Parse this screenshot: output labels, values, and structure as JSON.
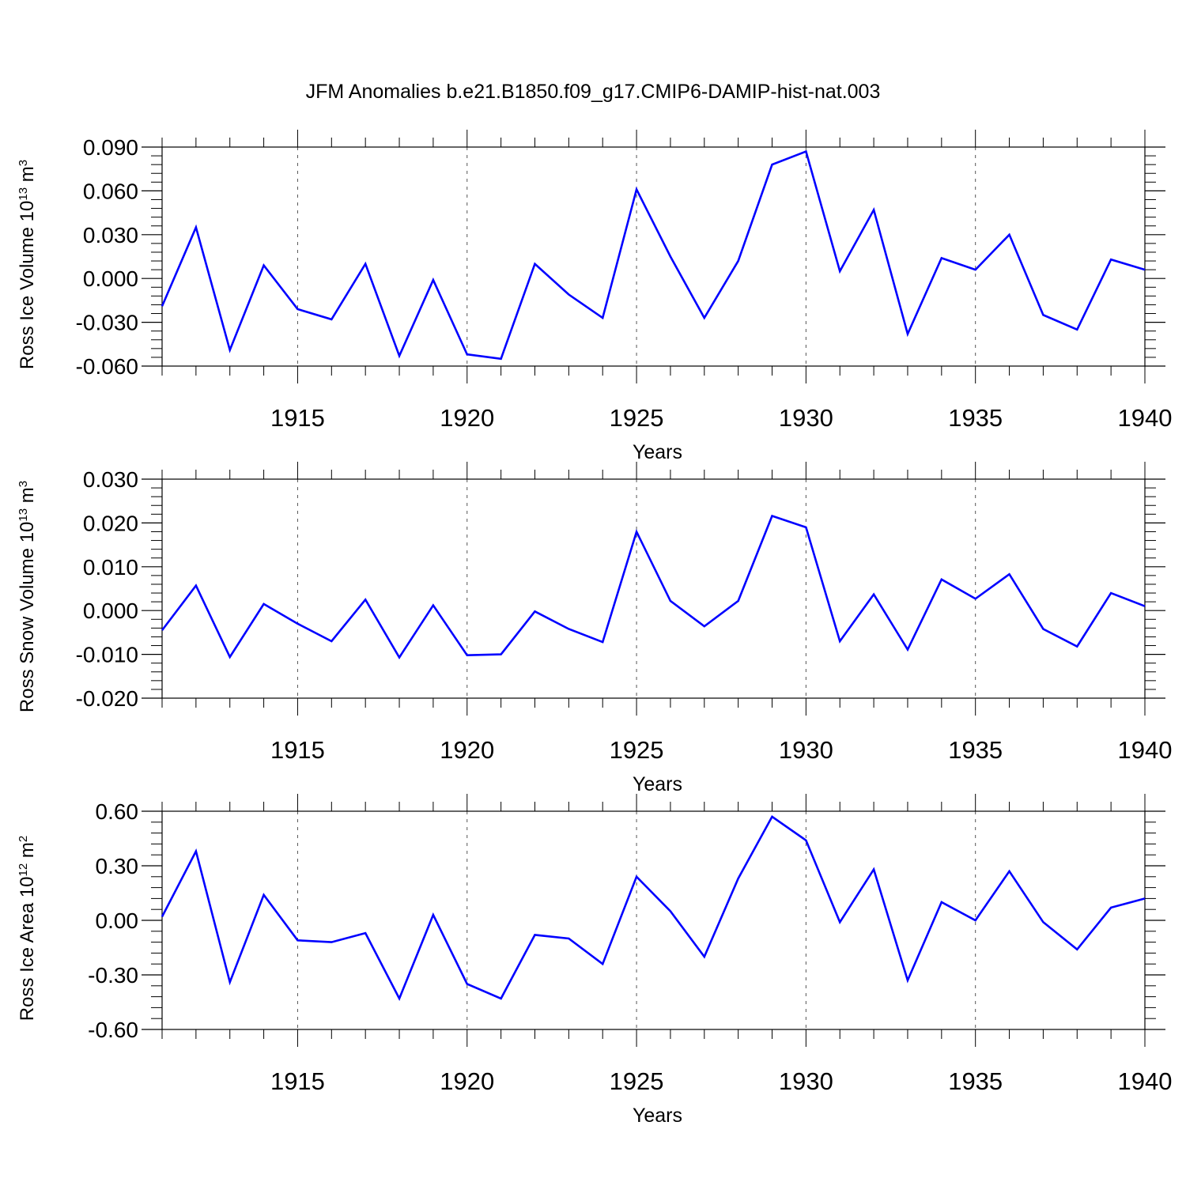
{
  "title": "JFM Anomalies b.e21.B1850.f09_g17.CMIP6-DAMIP-hist-nat.003",
  "line_color": "#0000ff",
  "chart_data": [
    {
      "type": "line",
      "ylabel": {
        "text": "Ross Ice Volume 10",
        "exp": "13",
        "unit": " m",
        "unit_exp": "3"
      },
      "xlabel": "Years",
      "xlim": [
        1911,
        1940
      ],
      "ylim": [
        -0.06,
        0.09
      ],
      "yticks": [
        -0.06,
        -0.03,
        0.0,
        0.03,
        0.06,
        0.09
      ],
      "ytick_labels": [
        "-0.060",
        "-0.030",
        "0.000",
        "0.030",
        "0.060",
        "0.090"
      ],
      "xticks": [
        1915,
        1920,
        1925,
        1930,
        1935,
        1940
      ],
      "xtick_labels": [
        "1915",
        "1920",
        "1925",
        "1930",
        "1935",
        "1940"
      ],
      "grid_x": [
        1915,
        1920,
        1925,
        1930,
        1935
      ],
      "x": [
        1911,
        1912,
        1913,
        1914,
        1915,
        1916,
        1917,
        1918,
        1919,
        1920,
        1921,
        1922,
        1923,
        1924,
        1925,
        1926,
        1927,
        1928,
        1929,
        1930,
        1931,
        1932,
        1933,
        1934,
        1935,
        1936,
        1937,
        1938,
        1939,
        1940
      ],
      "values": [
        -0.019,
        0.035,
        -0.049,
        0.009,
        -0.021,
        -0.028,
        0.01,
        -0.053,
        -0.001,
        -0.052,
        -0.055,
        0.01,
        -0.011,
        -0.027,
        0.061,
        0.015,
        -0.027,
        0.012,
        0.078,
        0.087,
        0.005,
        0.047,
        -0.038,
        0.014,
        0.006,
        0.03,
        -0.025,
        -0.035,
        0.013,
        0.006
      ]
    },
    {
      "type": "line",
      "ylabel": {
        "text": "Ross Snow Volume 10",
        "exp": "13",
        "unit": " m",
        "unit_exp": "3"
      },
      "xlabel": "Years",
      "xlim": [
        1911,
        1940
      ],
      "ylim": [
        -0.02,
        0.03
      ],
      "yticks": [
        -0.02,
        -0.01,
        0.0,
        0.01,
        0.02,
        0.03
      ],
      "ytick_labels": [
        "-0.020",
        "-0.010",
        "0.000",
        "0.010",
        "0.020",
        "0.030"
      ],
      "xticks": [
        1915,
        1920,
        1925,
        1930,
        1935,
        1940
      ],
      "xtick_labels": [
        "1915",
        "1920",
        "1925",
        "1930",
        "1935",
        "1940"
      ],
      "grid_x": [
        1915,
        1920,
        1925,
        1930,
        1935
      ],
      "x": [
        1911,
        1912,
        1913,
        1914,
        1915,
        1916,
        1917,
        1918,
        1919,
        1920,
        1921,
        1922,
        1923,
        1924,
        1925,
        1926,
        1927,
        1928,
        1929,
        1930,
        1931,
        1932,
        1933,
        1934,
        1935,
        1936,
        1937,
        1938,
        1939,
        1940
      ],
      "values": [
        -0.0045,
        0.0057,
        -0.0106,
        0.0015,
        -0.003,
        -0.007,
        0.0025,
        -0.0107,
        0.0012,
        -0.0102,
        -0.01,
        -0.0002,
        -0.0042,
        -0.0072,
        0.018,
        0.0022,
        -0.0036,
        0.0022,
        0.0216,
        0.019,
        -0.007,
        0.0037,
        -0.0089,
        0.0071,
        0.0027,
        0.0083,
        -0.0042,
        -0.0082,
        0.004,
        0.001
      ]
    },
    {
      "type": "line",
      "ylabel": {
        "text": "Ross Ice Area 10",
        "exp": "12",
        "unit": " m",
        "unit_exp": "2"
      },
      "xlabel": "Years",
      "xlim": [
        1911,
        1940
      ],
      "ylim": [
        -0.6,
        0.6
      ],
      "yticks": [
        -0.6,
        -0.3,
        0.0,
        0.3,
        0.6
      ],
      "ytick_labels": [
        "-0.60",
        "-0.30",
        "0.00",
        "0.30",
        "0.60"
      ],
      "xticks": [
        1915,
        1920,
        1925,
        1930,
        1935,
        1940
      ],
      "xtick_labels": [
        "1915",
        "1920",
        "1925",
        "1930",
        "1935",
        "1940"
      ],
      "grid_x": [
        1915,
        1920,
        1925,
        1930,
        1935
      ],
      "x": [
        1911,
        1912,
        1913,
        1914,
        1915,
        1916,
        1917,
        1918,
        1919,
        1920,
        1921,
        1922,
        1923,
        1924,
        1925,
        1926,
        1927,
        1928,
        1929,
        1930,
        1931,
        1932,
        1933,
        1934,
        1935,
        1936,
        1937,
        1938,
        1939,
        1940
      ],
      "values": [
        0.02,
        0.38,
        -0.34,
        0.14,
        -0.11,
        -0.12,
        -0.07,
        -0.43,
        0.03,
        -0.35,
        -0.43,
        -0.08,
        -0.1,
        -0.24,
        0.24,
        0.05,
        -0.2,
        0.23,
        0.57,
        0.44,
        -0.01,
        0.28,
        -0.33,
        0.1,
        0.0,
        0.27,
        -0.01,
        -0.16,
        0.07,
        0.12
      ]
    }
  ]
}
